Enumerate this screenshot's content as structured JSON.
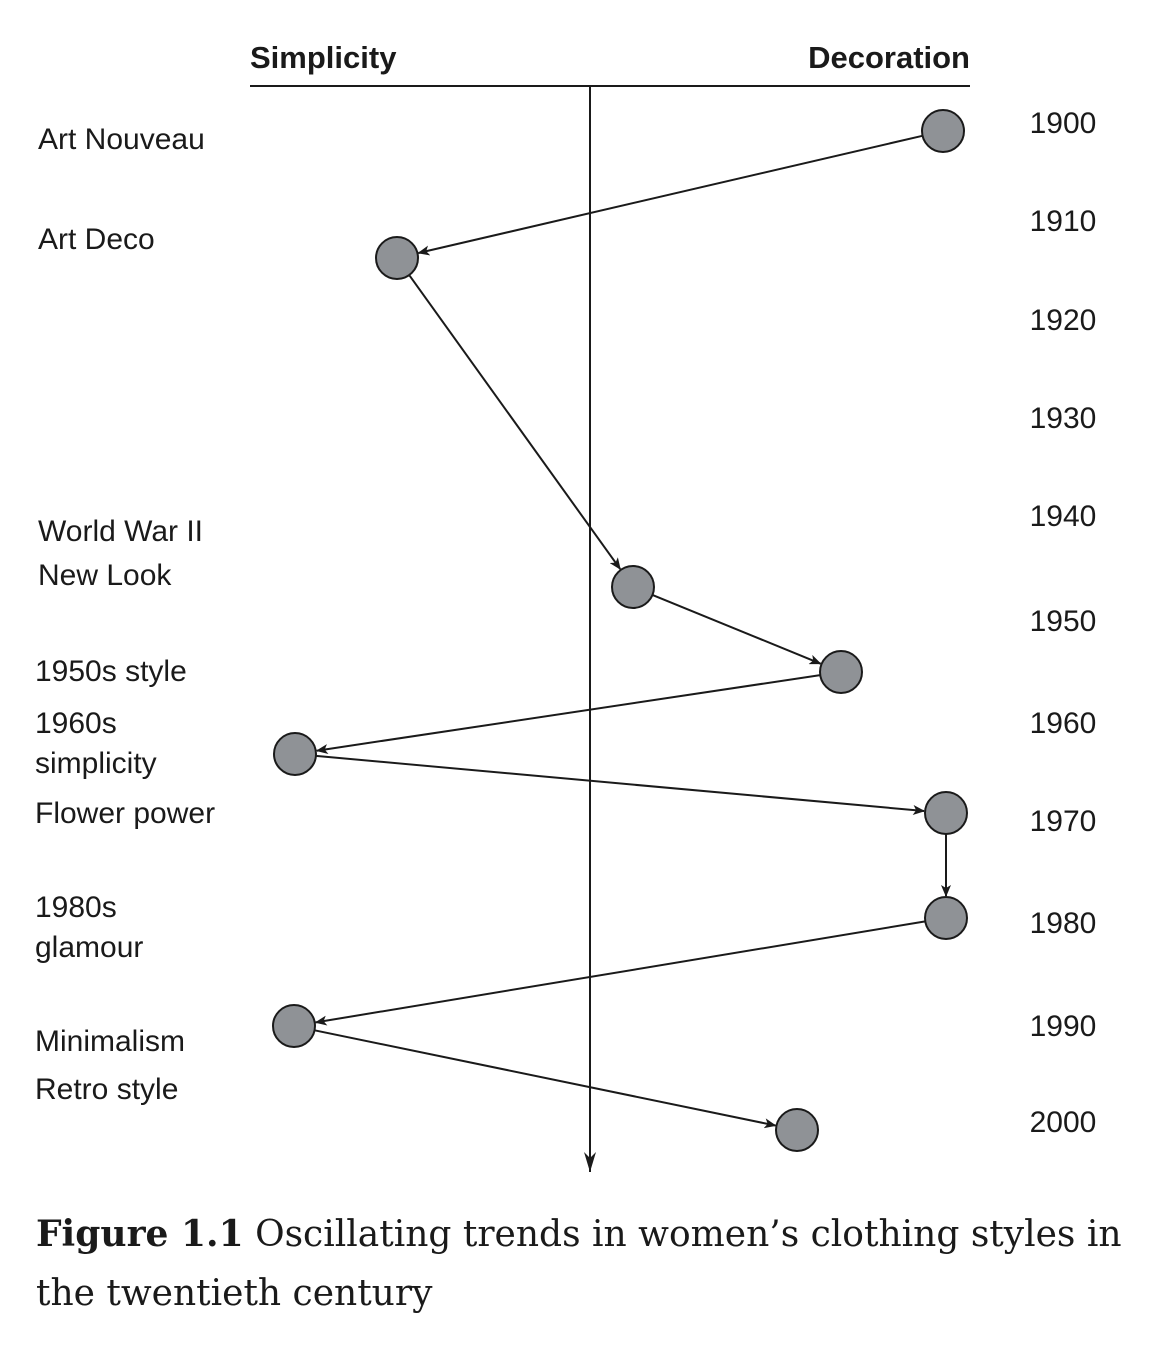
{
  "header": {
    "left_label": "Simplicity",
    "right_label": "Decoration"
  },
  "years": [
    "1900",
    "1910",
    "1920",
    "1930",
    "1940",
    "1950",
    "1960",
    "1970",
    "1980",
    "1990",
    "2000"
  ],
  "styles": [
    {
      "id": "art-nouveau",
      "lines": [
        "Art Nouveau"
      ]
    },
    {
      "id": "art-deco",
      "lines": [
        "Art Deco"
      ]
    },
    {
      "id": "world-war-ii",
      "lines": [
        "World War II"
      ]
    },
    {
      "id": "new-look",
      "lines": [
        "New Look"
      ]
    },
    {
      "id": "1950s-style",
      "lines": [
        "1950s style"
      ]
    },
    {
      "id": "1960s-simplicity",
      "lines": [
        "1960s",
        "simplicity"
      ]
    },
    {
      "id": "flower-power",
      "lines": [
        "Flower power"
      ]
    },
    {
      "id": "1980s-glamour",
      "lines": [
        "1980s",
        "glamour"
      ]
    },
    {
      "id": "minimalism",
      "lines": [
        "Minimalism"
      ]
    },
    {
      "id": "retro-style",
      "lines": [
        "Retro style"
      ]
    }
  ],
  "trend_points": [
    {
      "style": "art-nouveau"
    },
    {
      "style": "art-deco"
    },
    {
      "style": "new-look"
    },
    {
      "style": "1950s-style"
    },
    {
      "style": "1960s-simplicity"
    },
    {
      "style": "flower-power"
    },
    {
      "style": "1980s-glamour"
    },
    {
      "style": "minimalism"
    },
    {
      "style": "retro-style"
    }
  ],
  "colors": {
    "node_fill": "#8f9296",
    "stroke": "#1a1a1a"
  },
  "caption": {
    "figure_number": "Figure 1.1",
    "text": " Oscillating trends in women’s clothing styles in the twentieth century"
  }
}
